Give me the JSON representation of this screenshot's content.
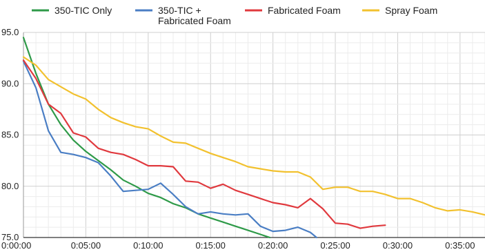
{
  "chart_data": {
    "type": "line",
    "title": "",
    "xlabel": "",
    "ylabel": "",
    "x_unit": "minutes",
    "xlim": [
      0,
      37
    ],
    "ylim": [
      75,
      95
    ],
    "grid": true,
    "legend_position": "top",
    "x_tick_labels": [
      "0:00:00",
      "0:05:00",
      "0:10:00",
      "0:15:00",
      "0:20:00",
      "0:25:00",
      "0:30:00",
      "0:35:00"
    ],
    "x_tick_values": [
      0,
      5,
      10,
      15,
      20,
      25,
      30,
      35
    ],
    "y_tick_labels": [
      "75.0",
      "80.0",
      "85.0",
      "90.0",
      "95.0"
    ],
    "y_tick_values": [
      75,
      80,
      85,
      90,
      95
    ],
    "legend": [
      {
        "lines": [
          "350-TIC Only"
        ],
        "color": "#2e9a48"
      },
      {
        "lines": [
          "350-TIC +",
          "Fabricated Foam"
        ],
        "color": "#4a7ec4"
      },
      {
        "lines": [
          "Fabricated Foam"
        ],
        "color": "#e0393e"
      },
      {
        "lines": [
          "Spray Foam"
        ],
        "color": "#f2c12e"
      }
    ],
    "series": [
      {
        "name": "350-TIC Only",
        "color": "#2e9a48",
        "x": [
          0,
          1,
          2,
          3,
          4,
          5,
          6,
          7,
          8,
          9,
          10,
          11,
          12,
          13,
          14,
          15,
          16,
          17,
          18,
          19,
          20
        ],
        "y": [
          94.5,
          91.0,
          88.0,
          86.0,
          84.5,
          83.4,
          82.5,
          81.6,
          80.6,
          80.0,
          79.3,
          78.9,
          78.3,
          77.9,
          77.3,
          76.9,
          76.5,
          76.1,
          75.7,
          75.3,
          74.9
        ]
      },
      {
        "name": "350-TIC + Fabricated Foam",
        "color": "#4a7ec4",
        "x": [
          0,
          1,
          2,
          3,
          4,
          5,
          6,
          7,
          8,
          9,
          10,
          11,
          12,
          13,
          14,
          15,
          16,
          17,
          18,
          19,
          20,
          21,
          22,
          23,
          23.5
        ],
        "y": [
          92.2,
          89.6,
          85.4,
          83.3,
          83.1,
          82.8,
          82.3,
          81.0,
          79.5,
          79.6,
          79.7,
          80.3,
          79.2,
          78.0,
          77.3,
          77.5,
          77.3,
          77.2,
          77.3,
          76.1,
          75.6,
          75.7,
          76.0,
          75.5,
          75.0
        ]
      },
      {
        "name": "Fabricated Foam",
        "color": "#e0393e",
        "x": [
          0,
          1,
          2,
          3,
          4,
          5,
          6,
          7,
          8,
          9,
          10,
          11,
          12,
          13,
          14,
          15,
          16,
          17,
          18,
          19,
          20,
          21,
          22,
          23,
          24,
          25,
          26,
          27,
          28,
          29
        ],
        "y": [
          92.3,
          90.5,
          88.0,
          87.1,
          85.2,
          84.8,
          83.7,
          83.3,
          83.1,
          82.6,
          82.0,
          82.0,
          81.9,
          80.5,
          80.4,
          79.8,
          80.2,
          79.6,
          79.2,
          78.8,
          78.4,
          78.2,
          77.9,
          78.8,
          77.8,
          76.4,
          76.3,
          75.9,
          76.1,
          76.2
        ]
      },
      {
        "name": "Spray Foam",
        "color": "#f2c12e",
        "x": [
          0,
          1,
          2,
          3,
          4,
          5,
          6,
          7,
          8,
          9,
          10,
          11,
          12,
          13,
          14,
          15,
          16,
          17,
          18,
          19,
          20,
          21,
          22,
          23,
          24,
          25,
          26,
          27,
          28,
          29,
          30,
          31,
          32,
          33,
          34,
          35,
          36,
          37
        ],
        "y": [
          92.6,
          91.8,
          90.4,
          89.7,
          89.0,
          88.5,
          87.5,
          86.7,
          86.2,
          85.8,
          85.6,
          84.9,
          84.3,
          84.2,
          83.7,
          83.2,
          82.8,
          82.4,
          81.9,
          81.7,
          81.5,
          81.4,
          81.4,
          80.9,
          79.7,
          79.9,
          79.9,
          79.5,
          79.5,
          79.2,
          78.8,
          78.8,
          78.4,
          77.9,
          77.6,
          77.7,
          77.5,
          77.2
        ]
      }
    ]
  }
}
